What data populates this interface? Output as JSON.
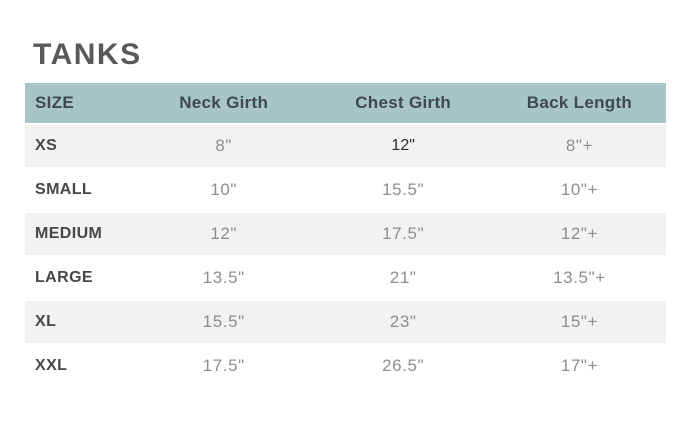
{
  "page": {
    "title": "TANKS"
  },
  "colors": {
    "header_bg": "#a7c4c6",
    "header_text": "#3e4a4b",
    "alt_row_bg": "#f3f2f1",
    "value_text": "#8d8d8d",
    "size_label_text": "#474747",
    "title_text": "#595959",
    "page_bg": "#ffffff"
  },
  "chart_data": {
    "type": "table",
    "title": "TANKS",
    "columns": [
      "SIZE",
      "Neck Girth",
      "Chest Girth",
      "Back Length"
    ],
    "rows": [
      [
        "XS",
        "8\"",
        "12\"",
        "8\"+"
      ],
      [
        "SMALL",
        "10\"",
        "15.5\"",
        "10\"+"
      ],
      [
        "MEDIUM",
        "12\"",
        "17.5\"",
        "12\"+"
      ],
      [
        "LARGE",
        "13.5\"",
        "21\"",
        "13.5\"+"
      ],
      [
        "XL",
        "15.5\"",
        "23\"",
        "15\"+"
      ],
      [
        "XXL",
        "17.5\"",
        "26.5\"",
        "17\"+"
      ]
    ],
    "emphasized_cell": {
      "row": 0,
      "col": 2
    }
  }
}
